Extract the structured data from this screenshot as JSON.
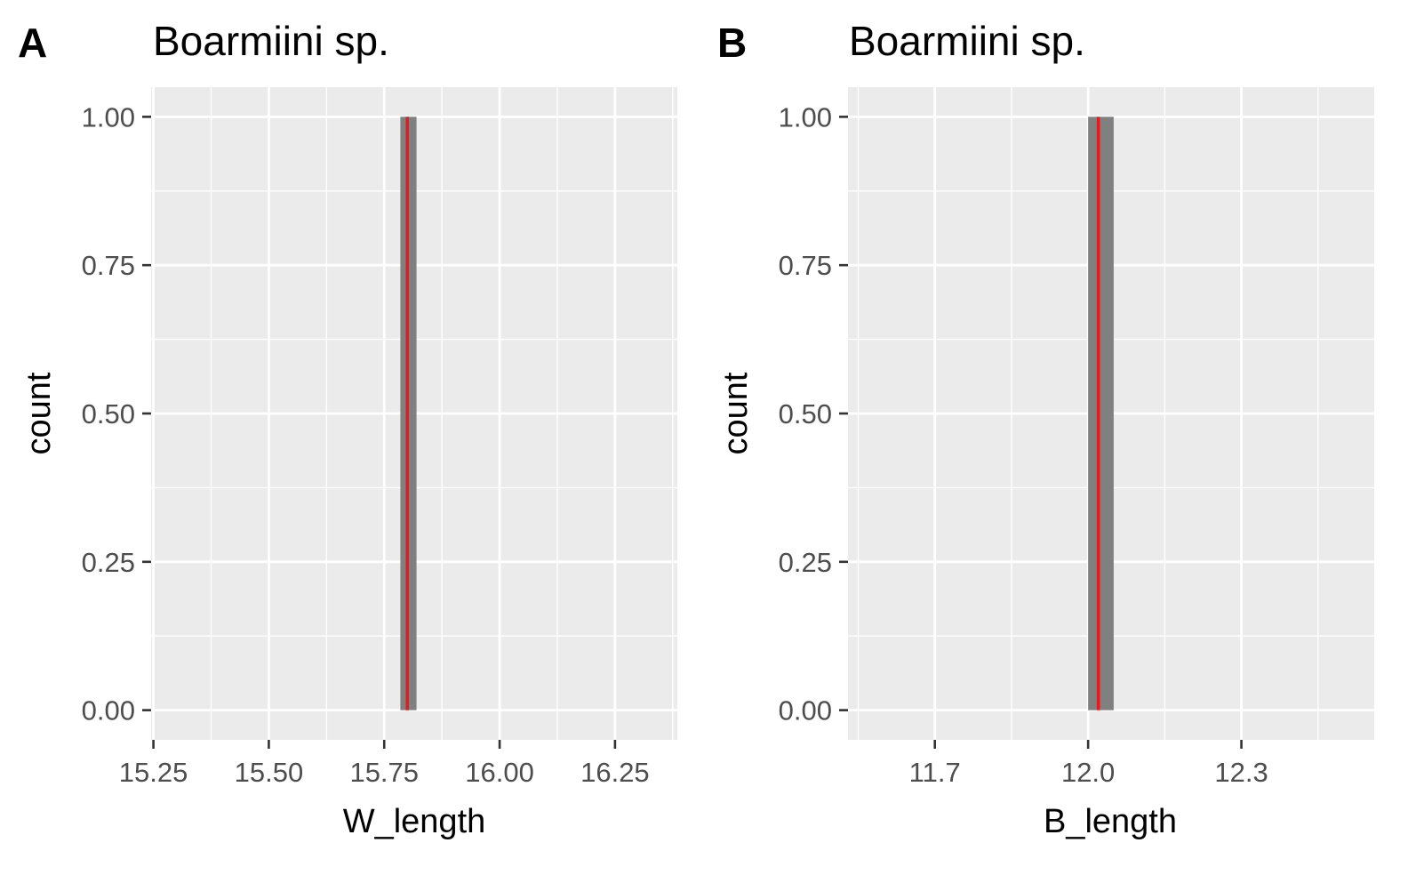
{
  "chart_data": [
    {
      "type": "bar",
      "panel_tag": "A",
      "title": "Boarmiini sp.",
      "xlabel": "W_length",
      "ylabel": "count",
      "xlim": [
        15.245,
        16.385
      ],
      "ylim": [
        -0.05,
        1.05
      ],
      "x_ticks": [
        15.25,
        15.5,
        15.75,
        16.0,
        16.25
      ],
      "x_tick_labels": [
        "15.25",
        "15.50",
        "15.75",
        "16.00",
        "16.25"
      ],
      "y_ticks": [
        0,
        0.25,
        0.5,
        0.75,
        1.0
      ],
      "y_tick_labels": [
        "0.00",
        "0.25",
        "0.50",
        "0.75",
        "1.00"
      ],
      "bars": [
        {
          "x_start": 15.785,
          "x_end": 15.82,
          "count": 1
        }
      ],
      "reference_line": {
        "x": 15.8,
        "color": "#e41a1c"
      },
      "bar_color": "#808080",
      "grid": true
    },
    {
      "type": "bar",
      "panel_tag": "B",
      "title": "Boarmiini sp.",
      "xlabel": "B_length",
      "ylabel": "count",
      "xlim": [
        11.53,
        12.56
      ],
      "ylim": [
        -0.05,
        1.05
      ],
      "x_ticks": [
        11.7,
        12.0,
        12.3
      ],
      "x_tick_labels": [
        "11.7",
        "12.0",
        "12.3"
      ],
      "y_ticks": [
        0,
        0.25,
        0.5,
        0.75,
        1.0
      ],
      "y_tick_labels": [
        "0.00",
        "0.25",
        "0.50",
        "0.75",
        "1.00"
      ],
      "bars": [
        {
          "x_start": 12.0,
          "x_end": 12.05,
          "count": 1
        }
      ],
      "reference_line": {
        "x": 12.02,
        "color": "#e41a1c"
      },
      "bar_color": "#808080",
      "grid": true
    }
  ]
}
